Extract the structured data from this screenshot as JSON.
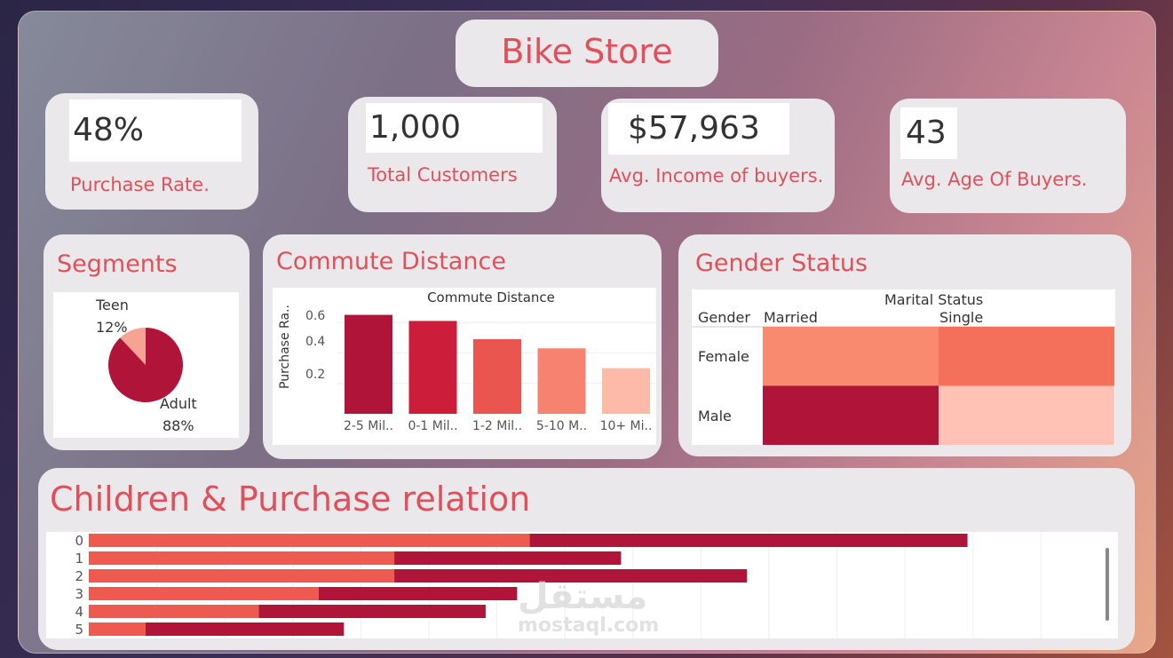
{
  "header": {
    "title": "Bike Store"
  },
  "kpis": [
    {
      "value": "48%",
      "label": "Purchase Rate."
    },
    {
      "value": "1,000",
      "label": "Total Customers"
    },
    {
      "value": "$57,963",
      "label": "Avg. Income of buyers."
    },
    {
      "value": "43",
      "label": "Avg. Age Of Buyers."
    }
  ],
  "segments": {
    "title": "Segments",
    "teen_label": "Teen",
    "teen_pct": "12%",
    "adult_label": "Adult",
    "adult_pct": "88%"
  },
  "commute": {
    "section_title": "Commute Distance",
    "chart_title": "Commute Distance",
    "y_label": "Purchase Ra..",
    "y_ticks": [
      "0.6",
      "0.4",
      "0.2"
    ]
  },
  "gender": {
    "section_title": "Gender Status",
    "col_header": "Marital Status",
    "row_header": "Gender",
    "cols": [
      "Married",
      "Single"
    ],
    "rows": [
      "Female",
      "Male"
    ]
  },
  "children": {
    "section_title": "Children & Purchase relation"
  },
  "watermark": {
    "arabic": "مستقل",
    "latin": "mostaql.com"
  },
  "chart_data": [
    {
      "type": "pie",
      "labels": [
        "Teen",
        "Adult"
      ],
      "values": [
        12,
        88
      ],
      "colors": [
        "#f6a394",
        "#b01438"
      ]
    },
    {
      "type": "bar",
      "title": "Commute Distance",
      "ylabel": "Purchase Ra..",
      "categories": [
        "2-5 Mil..",
        "0-1 Mil..",
        "1-2 Mil..",
        "5-10 M..",
        "10+ Mi.."
      ],
      "values": [
        0.65,
        0.61,
        0.49,
        0.43,
        0.3
      ],
      "ylim": [
        0,
        0.7
      ],
      "colors": [
        "#b01438",
        "#cc1d3a",
        "#ea5550",
        "#f7826f",
        "#fdbaa8"
      ]
    },
    {
      "type": "heatmap",
      "x": [
        "Married",
        "Single"
      ],
      "y": [
        "Female",
        "Male"
      ],
      "colors": [
        [
          "#f98a70",
          "#f5705a"
        ],
        [
          "#b01438",
          "#ffc2b5"
        ]
      ]
    },
    {
      "type": "bar",
      "orientation": "horizontal",
      "stacked": true,
      "categories": [
        "0",
        "1",
        "2",
        "3",
        "4",
        "5"
      ],
      "series": [
        {
          "values": [
            280,
            194,
            194,
            146,
            108,
            36
          ],
          "color": "#ef5a50"
        },
        {
          "values": [
            278,
            144,
            224,
            126,
            144,
            126
          ],
          "color": "#b01438"
        }
      ],
      "xlim": [
        0,
        640
      ]
    }
  ]
}
